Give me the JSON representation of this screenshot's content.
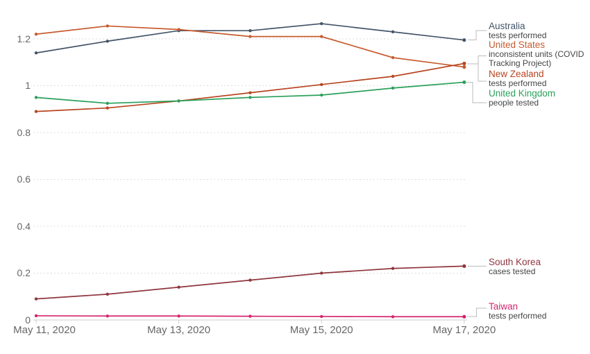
{
  "chart_data": {
    "type": "line",
    "title": "",
    "x": [
      "May 11, 2020",
      "May 12, 2020",
      "May 13, 2020",
      "May 14, 2020",
      "May 15, 2020",
      "May 16, 2020",
      "May 17, 2020"
    ],
    "x_tick_labels": [
      "May 11, 2020",
      "May 13, 2020",
      "May 15, 2020",
      "May 17, 2020"
    ],
    "x_tick_indices": [
      0,
      2,
      4,
      6
    ],
    "y_ticks": [
      0,
      0.2,
      0.4,
      0.6,
      0.8,
      1,
      1.2
    ],
    "y_tick_labels": [
      "0",
      "0.2",
      "0.4",
      "0.6",
      "0.8",
      "1",
      "1.2"
    ],
    "ylim": [
      0,
      1.3
    ],
    "grid": "horizontal-dashed",
    "legend_position": "right-of-lines",
    "series": [
      {
        "name": "Australia",
        "sublabel": "tests performed",
        "color": "#435468",
        "values": [
          1.14,
          1.19,
          1.235,
          1.235,
          1.265,
          1.23,
          1.195
        ]
      },
      {
        "name": "United States",
        "sublabel": "inconsistent units (COVID Tracking Project)",
        "color": "#C75B2F",
        "values": [
          1.22,
          1.255,
          1.24,
          1.21,
          1.21,
          1.12,
          1.08
        ]
      },
      {
        "name": "New Zealand",
        "sublabel": "tests performed",
        "color": "#B8441F",
        "values": [
          0.89,
          0.905,
          0.935,
          0.97,
          1.005,
          1.04,
          1.095
        ]
      },
      {
        "name": "United Kingdom",
        "sublabel": "people tested",
        "color": "#2AA05A",
        "values": [
          0.95,
          0.925,
          0.935,
          0.95,
          0.96,
          0.99,
          1.015
        ]
      },
      {
        "name": "South Korea",
        "sublabel": "cases tested",
        "color": "#8F353D",
        "values": [
          0.09,
          0.11,
          0.14,
          0.17,
          0.2,
          0.22,
          0.23
        ]
      },
      {
        "name": "Taiwan",
        "sublabel": "tests performed",
        "color": "#D5256F",
        "values": [
          0.018,
          0.017,
          0.017,
          0.016,
          0.015,
          0.014,
          0.014
        ]
      }
    ],
    "colors": {
      "background": "#ffffff",
      "gridline": "#dddddd",
      "axis_line": "#cccccc",
      "tick_text": "#666666",
      "sublabel_text": "#444444",
      "connector": "#bbbbbb"
    }
  }
}
